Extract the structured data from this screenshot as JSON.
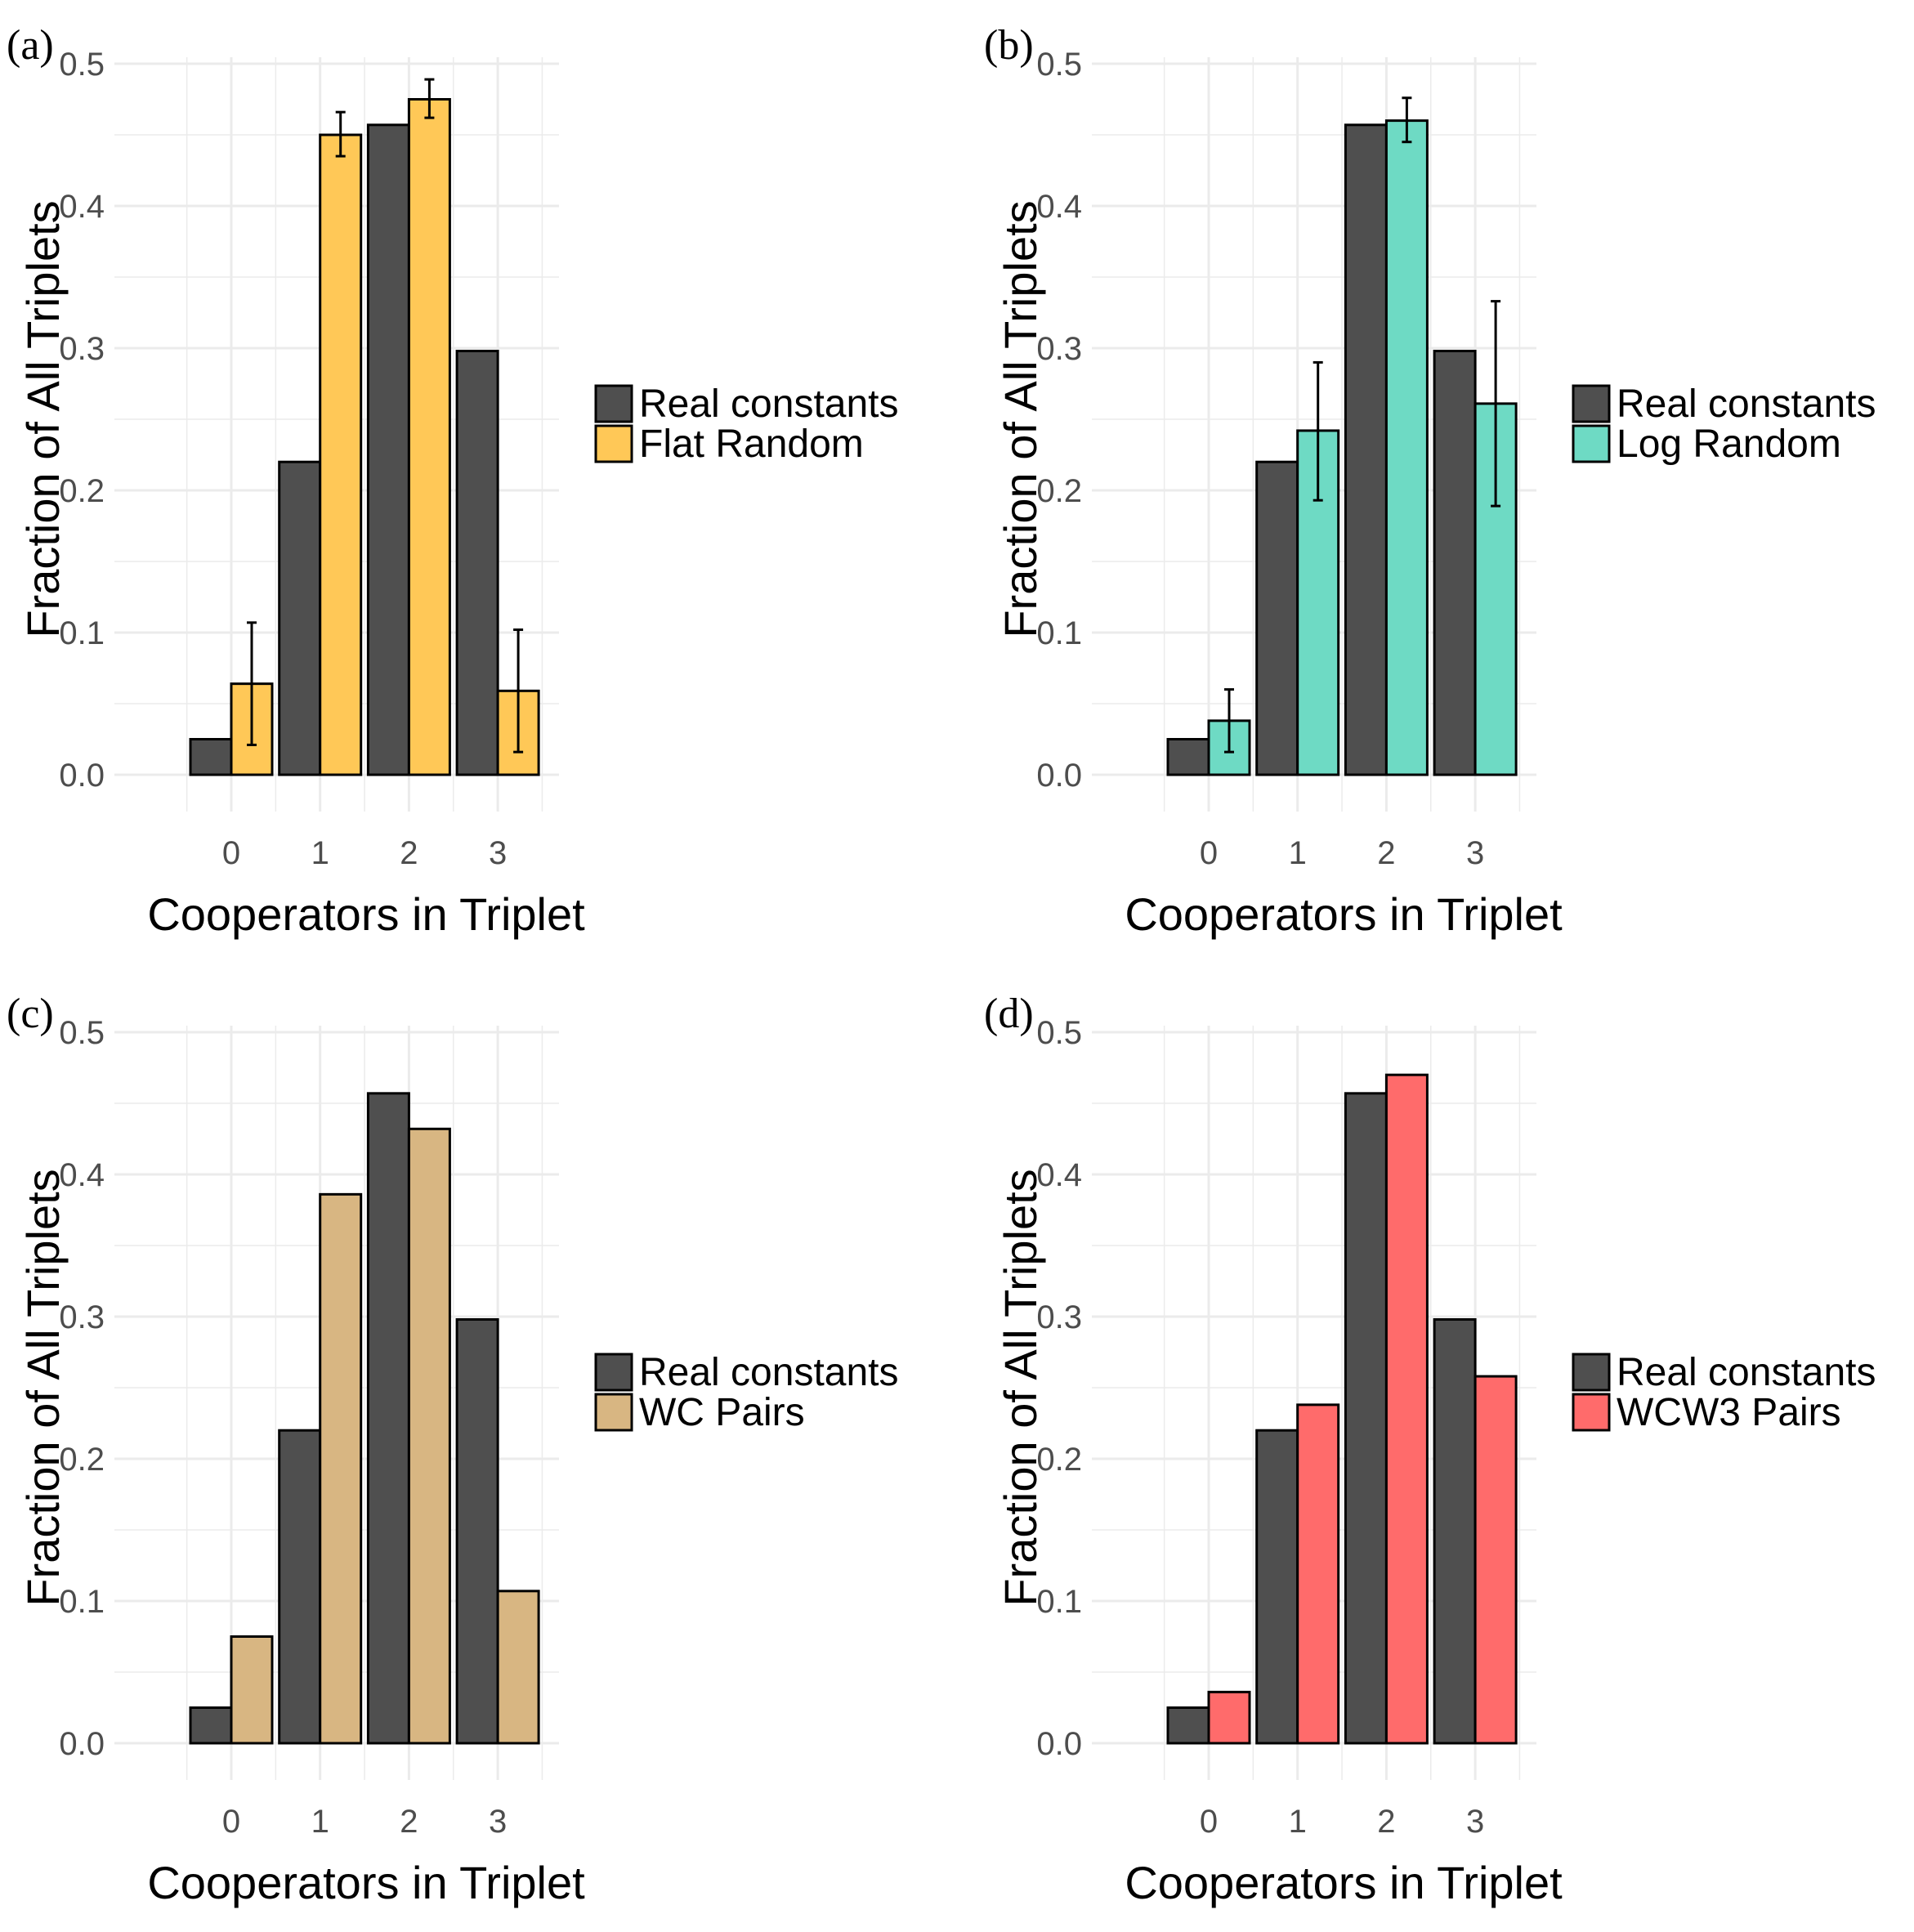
{
  "figure": {
    "colors": {
      "real": "#4f4f4f",
      "grid": "#ebebeb",
      "tick_text": "#4d4d4d",
      "title_text": "#000000"
    }
  },
  "chart_data": [
    {
      "panel": "(a)",
      "type": "bar",
      "xlabel": "Cooperators in Triplet",
      "ylabel": "Fraction of All Triplets",
      "categories": [
        "0",
        "1",
        "2",
        "3"
      ],
      "ylim": [
        0,
        0.5
      ],
      "yticks": [
        0.0,
        0.1,
        0.2,
        0.3,
        0.4,
        0.5
      ],
      "ytick_labels": [
        "0.0",
        "0.1",
        "0.2",
        "0.3",
        "0.4",
        "0.5"
      ],
      "legend_position": "right",
      "series": [
        {
          "name": "Real constants",
          "color": "#4f4f4f",
          "values": [
            0.025,
            0.22,
            0.457,
            0.298
          ]
        },
        {
          "name": "Flat Random",
          "color": "#ffc857",
          "values": [
            0.064,
            0.45,
            0.475,
            0.059
          ],
          "error_low": [
            0.021,
            0.435,
            0.462,
            0.016
          ],
          "error_high": [
            0.107,
            0.466,
            0.489,
            0.102
          ]
        }
      ]
    },
    {
      "panel": "(b)",
      "type": "bar",
      "xlabel": "Cooperators in Triplet",
      "ylabel": "Fraction of All Triplets",
      "categories": [
        "0",
        "1",
        "2",
        "3"
      ],
      "ylim": [
        0,
        0.5
      ],
      "yticks": [
        0.0,
        0.1,
        0.2,
        0.3,
        0.4,
        0.5
      ],
      "ytick_labels": [
        "0.0",
        "0.1",
        "0.2",
        "0.3",
        "0.4",
        "0.5"
      ],
      "legend_position": "right",
      "series": [
        {
          "name": "Real constants",
          "color": "#4f4f4f",
          "values": [
            0.025,
            0.22,
            0.457,
            0.298
          ]
        },
        {
          "name": "Log Random",
          "color": "#6edac4",
          "values": [
            0.038,
            0.242,
            0.46,
            0.261
          ],
          "error_low": [
            0.016,
            0.193,
            0.445,
            0.189
          ],
          "error_high": [
            0.06,
            0.29,
            0.476,
            0.333
          ]
        }
      ]
    },
    {
      "panel": "(c)",
      "type": "bar",
      "xlabel": "Cooperators in Triplet",
      "ylabel": "Fraction of All Triplets",
      "categories": [
        "0",
        "1",
        "2",
        "3"
      ],
      "ylim": [
        0,
        0.5
      ],
      "yticks": [
        0.0,
        0.1,
        0.2,
        0.3,
        0.4,
        0.5
      ],
      "ytick_labels": [
        "0.0",
        "0.1",
        "0.2",
        "0.3",
        "0.4",
        "0.5"
      ],
      "legend_position": "right",
      "series": [
        {
          "name": "Real constants",
          "color": "#4f4f4f",
          "values": [
            0.025,
            0.22,
            0.457,
            0.298
          ]
        },
        {
          "name": "WC Pairs",
          "color": "#d8b682",
          "values": [
            0.075,
            0.386,
            0.432,
            0.107
          ]
        }
      ]
    },
    {
      "panel": "(d)",
      "type": "bar",
      "xlabel": "Cooperators in Triplet",
      "ylabel": "Fraction of All Triplets",
      "categories": [
        "0",
        "1",
        "2",
        "3"
      ],
      "ylim": [
        0,
        0.5
      ],
      "yticks": [
        0.0,
        0.1,
        0.2,
        0.3,
        0.4,
        0.5
      ],
      "ytick_labels": [
        "0.0",
        "0.1",
        "0.2",
        "0.3",
        "0.4",
        "0.5"
      ],
      "legend_position": "right",
      "series": [
        {
          "name": "Real constants",
          "color": "#4f4f4f",
          "values": [
            0.025,
            0.22,
            0.457,
            0.298
          ]
        },
        {
          "name": "WCW3 Pairs",
          "color": "#ff6b6b",
          "values": [
            0.036,
            0.238,
            0.47,
            0.258
          ]
        }
      ]
    }
  ]
}
